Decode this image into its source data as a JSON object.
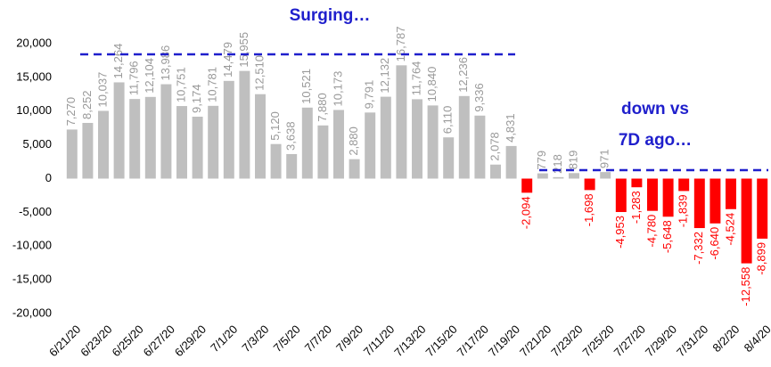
{
  "chart_data": {
    "type": "bar",
    "categories": [
      "6/21/20",
      null,
      "6/23/20",
      null,
      "6/25/20",
      null,
      "6/27/20",
      null,
      "6/29/20",
      null,
      "7/1/20",
      null,
      "7/3/20",
      null,
      "7/5/20",
      null,
      "7/7/20",
      null,
      "7/9/20",
      null,
      "7/11/20",
      null,
      "7/13/20",
      null,
      "7/15/20",
      null,
      "7/17/20",
      null,
      "7/19/20",
      null,
      "7/21/20",
      null,
      "7/23/20",
      null,
      "7/25/20",
      null,
      "7/27/20",
      null,
      "7/29/20",
      null,
      "7/31/20",
      null,
      "8/2/20",
      null,
      "8/4/20"
    ],
    "values": [
      7270,
      8252,
      10037,
      14264,
      11796,
      12104,
      13986,
      10751,
      9174,
      10781,
      14479,
      15955,
      12510,
      5120,
      3638,
      10521,
      7880,
      10173,
      2880,
      9791,
      12132,
      16787,
      11764,
      10840,
      6110,
      12236,
      9336,
      2078,
      4831,
      -2094,
      779,
      218,
      819,
      -1698,
      971,
      -4953,
      -1283,
      -4780,
      -5648,
      -1839,
      -7332,
      -6640,
      -4524,
      -12558,
      -8899
    ],
    "value_labels": [
      "7,270",
      "8,252",
      "10,037",
      "14,264",
      "11,796",
      "12,104",
      "13,986",
      "10,751",
      "9,174",
      "10,781",
      "14,479",
      "15,955",
      "12,510",
      "5,120",
      "3,638",
      "10,521",
      "7,880",
      "10,173",
      "2,880",
      "9,791",
      "12,132",
      "16,787",
      "11,764",
      "10,840",
      "6,110",
      "12,236",
      "9,336",
      "2,078",
      "4,831",
      "-2,094",
      "779",
      "218",
      "819",
      "-1,698",
      "971",
      "-4,953",
      "-1,283",
      "-4,780",
      "-5,648",
      "-1,839",
      "-7,332",
      "-6,640",
      "-4,524",
      "-12,558",
      "-8,899"
    ],
    "color": "#bfbfbf",
    "negative_color": "#ff0000",
    "ylim": [
      -20000,
      20000
    ],
    "yticks": [
      {
        "value": -20000,
        "label": "-20,000"
      },
      {
        "value": -15000,
        "label": "-15,000"
      },
      {
        "value": -10000,
        "label": "-10,000"
      },
      {
        "value": -5000,
        "label": "-5,000"
      },
      0,
      {
        "value": 5000,
        "label": "5,000"
      },
      {
        "value": 10000,
        "label": "10,000"
      },
      {
        "value": 15000,
        "label": "15,000"
      },
      {
        "value": 20000,
        "label": "20,000"
      }
    ],
    "grid": false,
    "annotations": [
      "Surging…",
      "down vs",
      "7D ago…"
    ]
  }
}
